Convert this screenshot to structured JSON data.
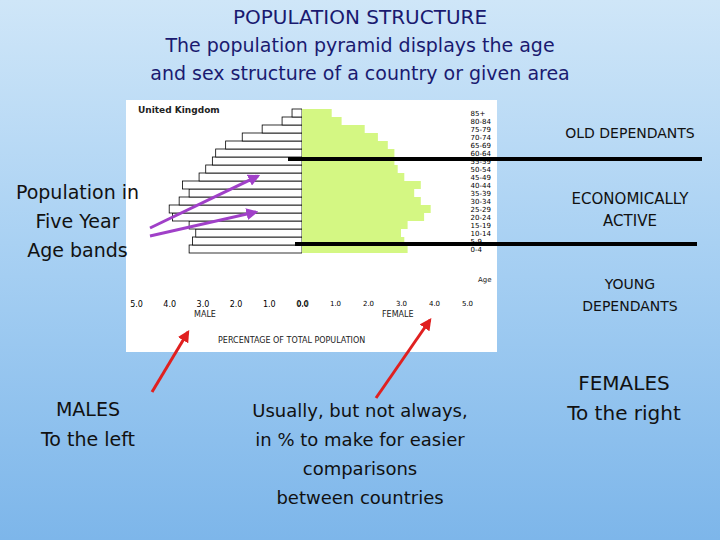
{
  "slide": {
    "title": "POPULATION STRUCTURE",
    "subtitle": [
      "The population pyramid displays the age",
      "and sex structure of a country or given area"
    ],
    "old_dependants": [
      "OLD DEPENDANTS"
    ],
    "economically_active": [
      "ECONOMICALLY",
      "ACTIVE"
    ],
    "young_dependants": [
      "YOUNG",
      "DEPENDANTS"
    ],
    "age_bands_note": [
      "Population in",
      "Five Year",
      "Age bands"
    ],
    "males_note": [
      "MALES",
      "To the left"
    ],
    "units_note": [
      "Usually, but not always,",
      "in % to make for easier",
      "comparisons",
      "between countries"
    ],
    "females_note": [
      "FEMALES",
      "To the right"
    ]
  },
  "chart_data": {
    "type": "bar",
    "orientation": "horizontal",
    "title": "United Kingdom",
    "xlabel": "PERCENTAGE OF TOTAL POPULATION",
    "ylabel": "Age",
    "categories": [
      "0-4",
      "5-9",
      "10-14",
      "15-19",
      "20-24",
      "25-29",
      "30-34",
      "35-39",
      "40-44",
      "45-49",
      "50-54",
      "55-59",
      "60-64",
      "65-69",
      "70-74",
      "75-79",
      "80-84",
      "85+"
    ],
    "series": [
      {
        "name": "MALE",
        "color": "#ffffff",
        "values": [
          3.4,
          3.3,
          3.2,
          3.4,
          3.9,
          4.0,
          3.7,
          3.4,
          3.6,
          3.1,
          2.9,
          2.7,
          2.6,
          2.3,
          1.8,
          1.2,
          0.6,
          0.3
        ]
      },
      {
        "name": "FEMALE",
        "color": "#d4f783",
        "values": [
          3.2,
          3.1,
          3.0,
          3.2,
          3.7,
          3.9,
          3.6,
          3.4,
          3.6,
          3.1,
          2.9,
          2.8,
          2.8,
          2.6,
          2.3,
          1.9,
          1.2,
          0.9
        ]
      }
    ],
    "xlim": [
      0,
      5
    ],
    "xticks": [
      0,
      1,
      2,
      3,
      4,
      5
    ]
  }
}
